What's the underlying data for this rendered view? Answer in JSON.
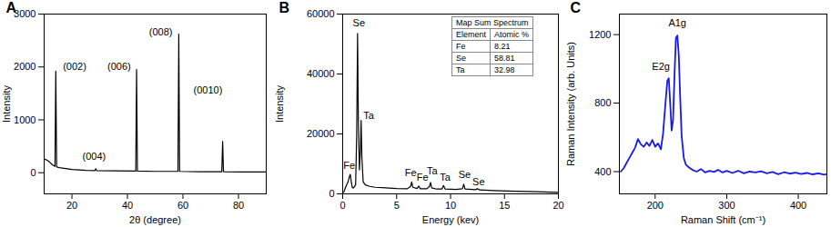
{
  "chart_data": [
    {
      "title": "A",
      "type": "line",
      "color": "#000000",
      "xlabel": "2θ (degree)",
      "ylabel": "Intensity",
      "xlim": [
        10,
        90
      ],
      "ylim": [
        -400,
        3000
      ],
      "xticks": [
        20,
        40,
        60,
        80
      ],
      "yticks": [
        0,
        1000,
        2000,
        3000
      ],
      "x": [
        10,
        11,
        12,
        13,
        13.9,
        14.2,
        14.5,
        16,
        20,
        25,
        28.3,
        28.6,
        28.9,
        35,
        43.0,
        43.3,
        43.6,
        50,
        58.2,
        58.5,
        58.8,
        66,
        74.0,
        74.3,
        74.6,
        82,
        90
      ],
      "values": [
        260,
        240,
        200,
        150,
        120,
        1920,
        110,
        90,
        60,
        45,
        40,
        75,
        40,
        35,
        30,
        1950,
        30,
        25,
        25,
        2620,
        25,
        20,
        20,
        590,
        20,
        15,
        15
      ],
      "annotations": [
        {
          "text": "(002)",
          "x": 21,
          "y": 2000
        },
        {
          "text": "(004)",
          "x": 28,
          "y": 300
        },
        {
          "text": "(006)",
          "x": 37,
          "y": 2000
        },
        {
          "text": "(008)",
          "x": 52,
          "y": 2650
        },
        {
          "text": "(0010)",
          "x": 69,
          "y": 1550
        }
      ]
    },
    {
      "title": "B",
      "type": "line",
      "color": "#000000",
      "xlabel": "Energy (kev)",
      "ylabel": "Intensity",
      "xlim": [
        0,
        20
      ],
      "ylim": [
        0,
        60000
      ],
      "xticks": [
        0,
        5,
        10,
        15,
        20
      ],
      "yticks": [
        0,
        20000,
        40000,
        60000
      ],
      "x": [
        0.1,
        0.3,
        0.5,
        0.6,
        0.7,
        0.8,
        0.9,
        1.0,
        1.2,
        1.3,
        1.38,
        1.45,
        1.55,
        1.65,
        1.71,
        1.78,
        1.9,
        2.1,
        2.5,
        3,
        4,
        5,
        6,
        6.3,
        6.4,
        6.5,
        6.9,
        7.06,
        7.2,
        7.8,
        8.05,
        8.15,
        8.25,
        8.7,
        9.2,
        9.35,
        9.5,
        10.5,
        11.1,
        11.22,
        11.35,
        12.3,
        12.5,
        12.7,
        14,
        16,
        18,
        20
      ],
      "values": [
        500,
        2500,
        4000,
        5500,
        6500,
        4000,
        2000,
        2000,
        3000,
        20000,
        53500,
        25000,
        8000,
        15000,
        24500,
        12000,
        4000,
        3000,
        2500,
        2200,
        2000,
        1800,
        1700,
        2500,
        4000,
        2200,
        1800,
        2600,
        1700,
        1700,
        2500,
        3800,
        2000,
        1600,
        1600,
        2800,
        1600,
        1500,
        1700,
        3200,
        1600,
        1400,
        1700,
        1300,
        1100,
        900,
        700,
        500
      ],
      "annotations": [
        {
          "text": "Fe",
          "x": 0.6,
          "y": 9500
        },
        {
          "text": "Se",
          "x": 1.5,
          "y": 57000
        },
        {
          "text": "Ta",
          "x": 2.4,
          "y": 26000
        },
        {
          "text": "Fe",
          "x": 6.3,
          "y": 7000
        },
        {
          "text": "Fe",
          "x": 7.4,
          "y": 5500
        },
        {
          "text": "Ta",
          "x": 8.3,
          "y": 7500
        },
        {
          "text": "Ta",
          "x": 9.5,
          "y": 5500
        },
        {
          "text": "Se",
          "x": 11.3,
          "y": 6500
        },
        {
          "text": "Se",
          "x": 12.6,
          "y": 4000
        }
      ],
      "table": {
        "title": "Map Sum Spectrum",
        "header": [
          "Element",
          "Atomic %"
        ],
        "rows": [
          [
            "Fe",
            8.21
          ],
          [
            "Se",
            58.81
          ],
          [
            "Ta",
            32.98
          ]
        ]
      }
    },
    {
      "title": "C",
      "type": "line",
      "color": "#1a1ae6",
      "xlabel": "Raman Shift (cm⁻¹)",
      "ylabel": "Raman Intensity (arb. Units)",
      "xlim": [
        150,
        440
      ],
      "ylim": [
        270,
        1320
      ],
      "xticks": [
        200,
        300,
        400
      ],
      "yticks": [
        400,
        800,
        1200
      ],
      "x": [
        152,
        156,
        160,
        164,
        168,
        172,
        176,
        180,
        184,
        188,
        192,
        196,
        200,
        204,
        208,
        211,
        214,
        217,
        219,
        221,
        223,
        225,
        227,
        229,
        231,
        233,
        235,
        237,
        240,
        243,
        247,
        252,
        258,
        264,
        270,
        276,
        282,
        288,
        294,
        300,
        308,
        316,
        324,
        332,
        340,
        348,
        356,
        364,
        372,
        380,
        388,
        396,
        404,
        412,
        420,
        428,
        436,
        440
      ],
      "values": [
        400,
        420,
        450,
        480,
        510,
        540,
        590,
        560,
        545,
        570,
        550,
        585,
        545,
        565,
        530,
        620,
        780,
        930,
        945,
        800,
        640,
        700,
        960,
        1180,
        1195,
        1080,
        830,
        610,
        480,
        440,
        425,
        410,
        400,
        415,
        395,
        405,
        398,
        410,
        395,
        405,
        392,
        405,
        390,
        400,
        395,
        402,
        390,
        398,
        385,
        396,
        388,
        394,
        386,
        392,
        384,
        390,
        382,
        385
      ],
      "annotations": [
        {
          "text": "E2g",
          "x": 208,
          "y": 1010
        },
        {
          "text": "A1g",
          "x": 231,
          "y": 1265
        }
      ]
    }
  ]
}
